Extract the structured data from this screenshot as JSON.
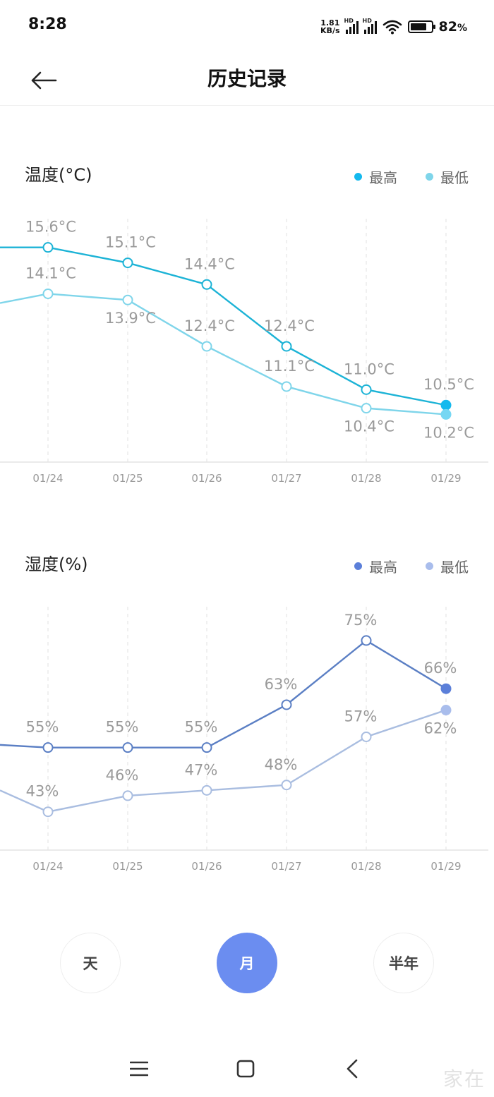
{
  "status": {
    "time": "8:28",
    "net_speed_value": "1.81",
    "net_speed_unit": "KB/s",
    "hd_label": "HD",
    "battery": "82",
    "battery_suffix": "%"
  },
  "header": {
    "title": "历史记录"
  },
  "temperature_chart": {
    "title": "温度(°C)",
    "legend": [
      "最高",
      "最低"
    ]
  },
  "humidity_chart": {
    "title": "湿度(%)",
    "legend": [
      "最高",
      "最低"
    ]
  },
  "period_tabs": {
    "day": "天",
    "month": "月",
    "half_year": "半年",
    "selected": "month"
  },
  "watermark": "家在",
  "colors": {
    "temp_high": "#1cb3d6",
    "temp_low": "#7fd5ea",
    "temp_high_dot": "#14b9ee",
    "temp_low_dot": "#76d7f3",
    "hum_high": "#5b7fc4",
    "hum_low": "#a9bde0",
    "hum_high_dot": "#5b7fd9",
    "hum_low_dot": "#a9bdec",
    "active_tab": "#6b8df0"
  },
  "icons": {
    "back": "arrow-left-icon",
    "menu": "menu-icon",
    "home": "square-home-icon",
    "nav_back": "chevron-left-icon"
  },
  "chart_data": [
    {
      "type": "line",
      "categories": [
        "01/24",
        "01/25",
        "01/26",
        "01/27",
        "01/28",
        "01/29"
      ],
      "series": [
        {
          "name": "最高",
          "values": [
            15.6,
            15.1,
            14.4,
            12.4,
            11.0,
            10.5
          ],
          "labels": [
            "15.6°C",
            "15.1°C",
            "14.4°C",
            "12.4°C",
            "11.0°C",
            "10.5°C"
          ],
          "lead_in": 15.6
        },
        {
          "name": "最低",
          "values": [
            14.1,
            13.9,
            12.4,
            11.1,
            10.4,
            10.2
          ],
          "labels": [
            "14.1°C",
            "13.9°C",
            "12.4°C",
            "11.1°C",
            "10.4°C",
            "10.2°C"
          ],
          "lead_in": 13.8
        }
      ],
      "ylabel": "温度(°C)",
      "ylim": [
        9.0,
        16.3
      ]
    },
    {
      "type": "line",
      "categories": [
        "01/24",
        "01/25",
        "01/26",
        "01/27",
        "01/28",
        "01/29"
      ],
      "series": [
        {
          "name": "最高",
          "values": [
            55,
            55,
            55,
            63,
            75,
            66
          ],
          "labels": [
            "55%",
            "55%",
            "55%",
            "63%",
            "75%",
            "66%"
          ],
          "lead_in": 55.5
        },
        {
          "name": "最低",
          "values": [
            43,
            46,
            47,
            48,
            57,
            62
          ],
          "labels": [
            "43%",
            "46%",
            "47%",
            "48%",
            "57%",
            "62%"
          ],
          "lead_in": 47
        }
      ],
      "ylabel": "湿度(%)",
      "ylim": [
        36.5,
        80
      ]
    }
  ]
}
